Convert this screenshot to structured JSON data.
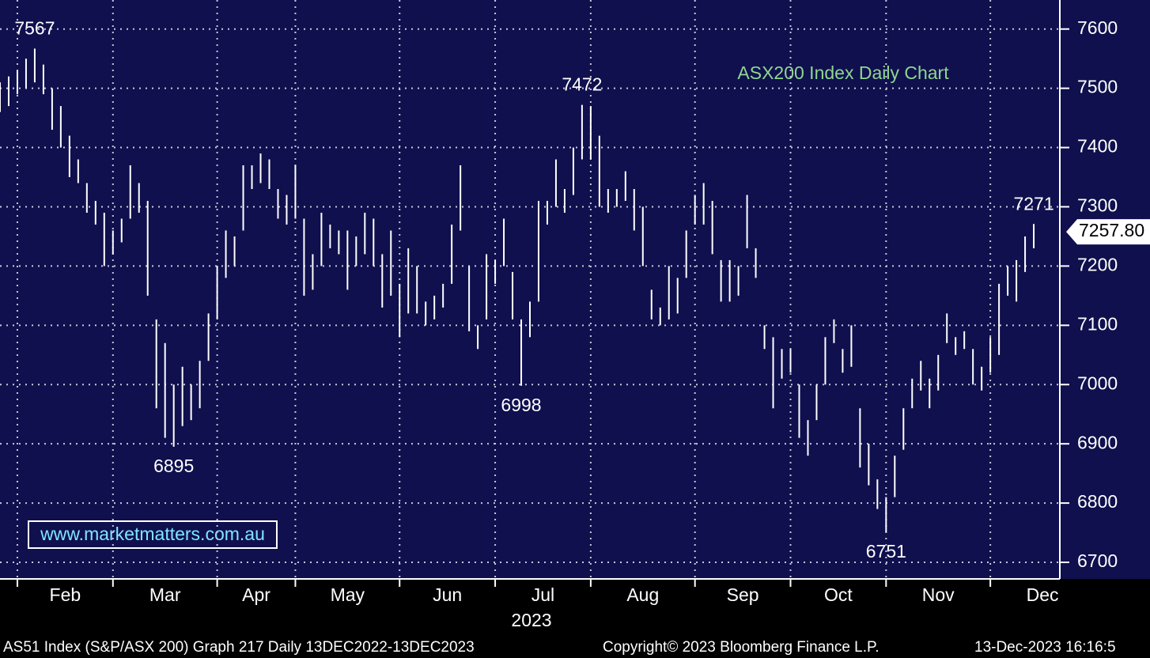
{
  "chart_data": {
    "type": "hl-bar",
    "title": "ASX200 Index Daily Chart",
    "watermark": "www.marketmatters.com.au",
    "year_label": "2023",
    "footer": [
      "AS51 Index (S&P/ASX 200) Graph 217  Daily 13DEC2022-13DEC2023",
      "Copyright© 2023 Bloomberg Finance L.P.",
      "13-Dec-2023 16:16:5"
    ],
    "color": "#ffffff",
    "grid": true,
    "xlim": [
      0,
      122
    ],
    "xticks": [
      {
        "value": 2,
        "label": "Feb"
      },
      {
        "value": 13,
        "label": "Mar"
      },
      {
        "value": 25,
        "label": "Apr"
      },
      {
        "value": 34,
        "label": "May"
      },
      {
        "value": 46,
        "label": "Jun"
      },
      {
        "value": 57,
        "label": "Jul"
      },
      {
        "value": 68,
        "label": "Aug"
      },
      {
        "value": 80,
        "label": "Sep"
      },
      {
        "value": 91,
        "label": "Oct"
      },
      {
        "value": 102,
        "label": "Nov"
      },
      {
        "value": 114,
        "label": "Dec"
      }
    ],
    "ylim": [
      6672,
      7649
    ],
    "yticks": [
      6700,
      6800,
      6900,
      7000,
      7100,
      7200,
      7300,
      7400,
      7500,
      7600
    ],
    "highs": [
      7510,
      7520,
      7530,
      7550,
      7567,
      7540,
      7500,
      7470,
      7420,
      7380,
      7340,
      7310,
      7290,
      7260,
      7280,
      7370,
      7340,
      7310,
      7110,
      7070,
      7000,
      7030,
      7000,
      7040,
      7120,
      7200,
      7260,
      7250,
      7370,
      7370,
      7390,
      7380,
      7330,
      7320,
      7370,
      7280,
      7220,
      7290,
      7270,
      7260,
      7260,
      7250,
      7290,
      7280,
      7220,
      7260,
      7170,
      7230,
      7200,
      7140,
      7150,
      7170,
      7270,
      7370,
      7200,
      7100,
      7220,
      7210,
      7280,
      7190,
      7110,
      7140,
      7310,
      7310,
      7380,
      7330,
      7400,
      7472,
      7470,
      7420,
      7330,
      7330,
      7360,
      7330,
      7300,
      7160,
      7130,
      7200,
      7180,
      7260,
      7320,
      7340,
      7310,
      7210,
      7210,
      7200,
      7320,
      7230,
      7100,
      7080,
      7060,
      7060,
      7000,
      6940,
      7000,
      7080,
      7110,
      7060,
      7100,
      6960,
      6900,
      6840,
      6810,
      6880,
      6960,
      7010,
      7040,
      7010,
      7050,
      7120,
      7080,
      7090,
      7060,
      7030,
      7080,
      7170,
      7200,
      7210,
      7250,
      7271
    ],
    "lows": [
      7460,
      7470,
      7490,
      7500,
      7510,
      7490,
      7430,
      7400,
      7350,
      7340,
      7290,
      7270,
      7200,
      7220,
      7240,
      7280,
      7290,
      7150,
      6960,
      6910,
      6895,
      6930,
      6940,
      6960,
      7040,
      7110,
      7180,
      7200,
      7260,
      7330,
      7340,
      7330,
      7280,
      7270,
      7280,
      7150,
      7160,
      7200,
      7230,
      7220,
      7160,
      7200,
      7220,
      7200,
      7130,
      7150,
      7080,
      7120,
      7120,
      7100,
      7110,
      7130,
      7170,
      7260,
      7090,
      7060,
      7110,
      7170,
      7200,
      7110,
      6998,
      7080,
      7140,
      7270,
      7300,
      7290,
      7320,
      7380,
      7380,
      7300,
      7290,
      7300,
      7310,
      7260,
      7200,
      7110,
      7100,
      7110,
      7120,
      7180,
      7270,
      7270,
      7220,
      7140,
      7140,
      7150,
      7230,
      7180,
      7060,
      6960,
      7010,
      7020,
      6910,
      6880,
      6940,
      7000,
      7070,
      7020,
      7030,
      6860,
      6830,
      6790,
      6751,
      6810,
      6890,
      6960,
      6990,
      6960,
      6990,
      7070,
      7050,
      7060,
      7000,
      6990,
      7020,
      7050,
      7150,
      7140,
      7190,
      7230
    ],
    "annotations": [
      {
        "value": 7567,
        "at": 4,
        "side": "high"
      },
      {
        "value": 6895,
        "at": 20,
        "side": "low"
      },
      {
        "value": 7472,
        "at": 67,
        "side": "high"
      },
      {
        "value": 6998,
        "at": 60,
        "side": "low"
      },
      {
        "value": 6751,
        "at": 102,
        "side": "low"
      },
      {
        "value": 7271,
        "at": 119,
        "side": "high"
      }
    ],
    "last_price": {
      "value": 7257.8,
      "label": "7257.80"
    }
  }
}
